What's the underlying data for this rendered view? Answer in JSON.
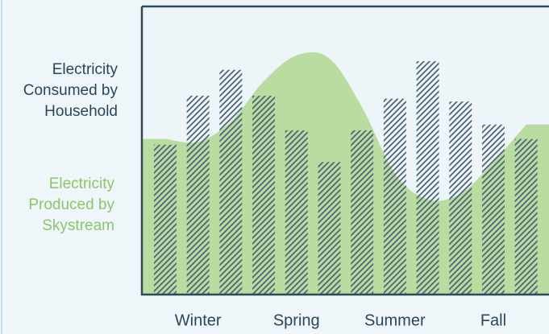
{
  "chart_data": {
    "type": "bar",
    "categories": [
      null,
      "Winter",
      null,
      null,
      "Spring",
      null,
      null,
      "Summer",
      null,
      null,
      "Fall",
      null
    ],
    "ylim": [
      0,
      100
    ],
    "series": [
      {
        "name": "Electricity Consumed by Household",
        "color": "#4f6475",
        "values": [
          52,
          69,
          78,
          69,
          57,
          46,
          57,
          68,
          81,
          67,
          59,
          54
        ]
      },
      {
        "name": "Electricity Produced by Skystream",
        "color": "#8cc56a",
        "values": [
          54,
          53,
          60,
          74,
          83,
          82,
          65,
          42,
          33,
          35,
          46,
          59
        ]
      }
    ]
  }
}
